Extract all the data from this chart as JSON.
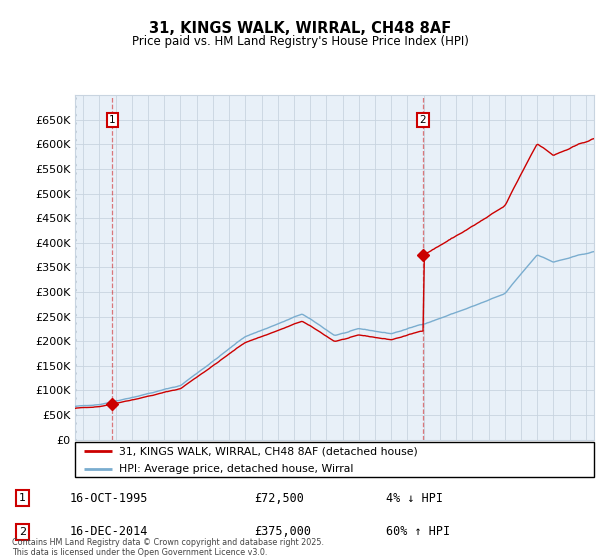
{
  "title": "31, KINGS WALK, WIRRAL, CH48 8AF",
  "subtitle": "Price paid vs. HM Land Registry's House Price Index (HPI)",
  "legend_line1": "31, KINGS WALK, WIRRAL, CH48 8AF (detached house)",
  "legend_line2": "HPI: Average price, detached house, Wirral",
  "annotation1_date": "16-OCT-1995",
  "annotation1_price": "£72,500",
  "annotation1_hpi": "4% ↓ HPI",
  "annotation2_date": "16-DEC-2014",
  "annotation2_price": "£375,000",
  "annotation2_hpi": "60% ↑ HPI",
  "footer": "Contains HM Land Registry data © Crown copyright and database right 2025.\nThis data is licensed under the Open Government Licence v3.0.",
  "sale_color": "#cc0000",
  "hpi_color": "#7aadcf",
  "background_color": "#e8f0f8",
  "grid_color": "#c8d4e0",
  "hatch_color": "#c0ccd8",
  "ylim": [
    0,
    700000
  ],
  "ytick_vals": [
    0,
    50000,
    100000,
    150000,
    200000,
    250000,
    300000,
    350000,
    400000,
    450000,
    500000,
    550000,
    600000,
    650000
  ],
  "sale1_x": 1995.79,
  "sale1_y": 72500,
  "sale2_x": 2014.96,
  "sale2_y": 375000,
  "xmin": 1993.5,
  "xmax": 2025.5
}
